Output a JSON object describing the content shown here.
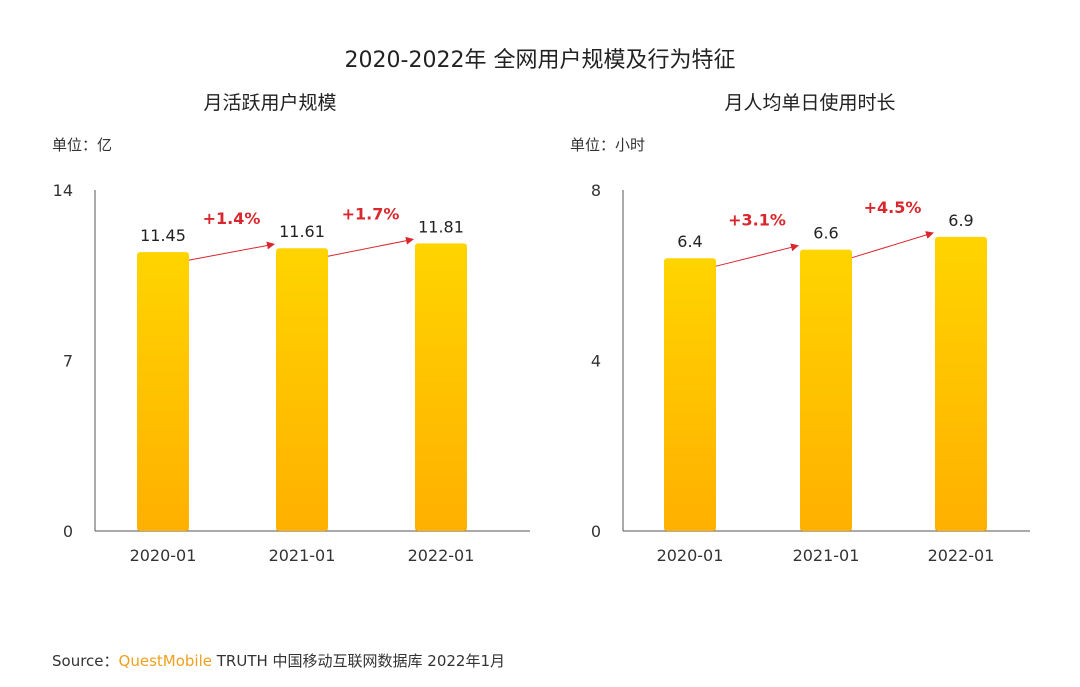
{
  "title": "2020-2022年 全网用户规模及行为特征",
  "source": {
    "prefix": "Source：",
    "brand": "QuestMobile",
    "rest": " TRUTH 中国移动互联网数据库 2022年1月"
  },
  "colors": {
    "bar_top": "#ffd400",
    "bar_bottom": "#ffb000",
    "growth": "#d9272e",
    "axis": "#555555"
  },
  "chart_data": [
    {
      "type": "bar",
      "title": "月活跃用户规模",
      "unit_label": "单位：亿",
      "categories": [
        "2020-01",
        "2021-01",
        "2022-01"
      ],
      "values": [
        11.45,
        11.61,
        11.81
      ],
      "value_labels": [
        "11.45",
        "11.61",
        "11.81"
      ],
      "growth": [
        "+1.4%",
        "+1.7%"
      ],
      "yticks": [
        0,
        7,
        14
      ],
      "ylim": [
        0,
        14
      ]
    },
    {
      "type": "bar",
      "title": "月人均单日使用时长",
      "unit_label": "单位：小时",
      "categories": [
        "2020-01",
        "2021-01",
        "2022-01"
      ],
      "values": [
        6.4,
        6.6,
        6.9
      ],
      "value_labels": [
        "6.4",
        "6.6",
        "6.9"
      ],
      "growth": [
        "+3.1%",
        "+4.5%"
      ],
      "yticks": [
        0,
        4,
        8
      ],
      "ylim": [
        0,
        8
      ]
    }
  ]
}
